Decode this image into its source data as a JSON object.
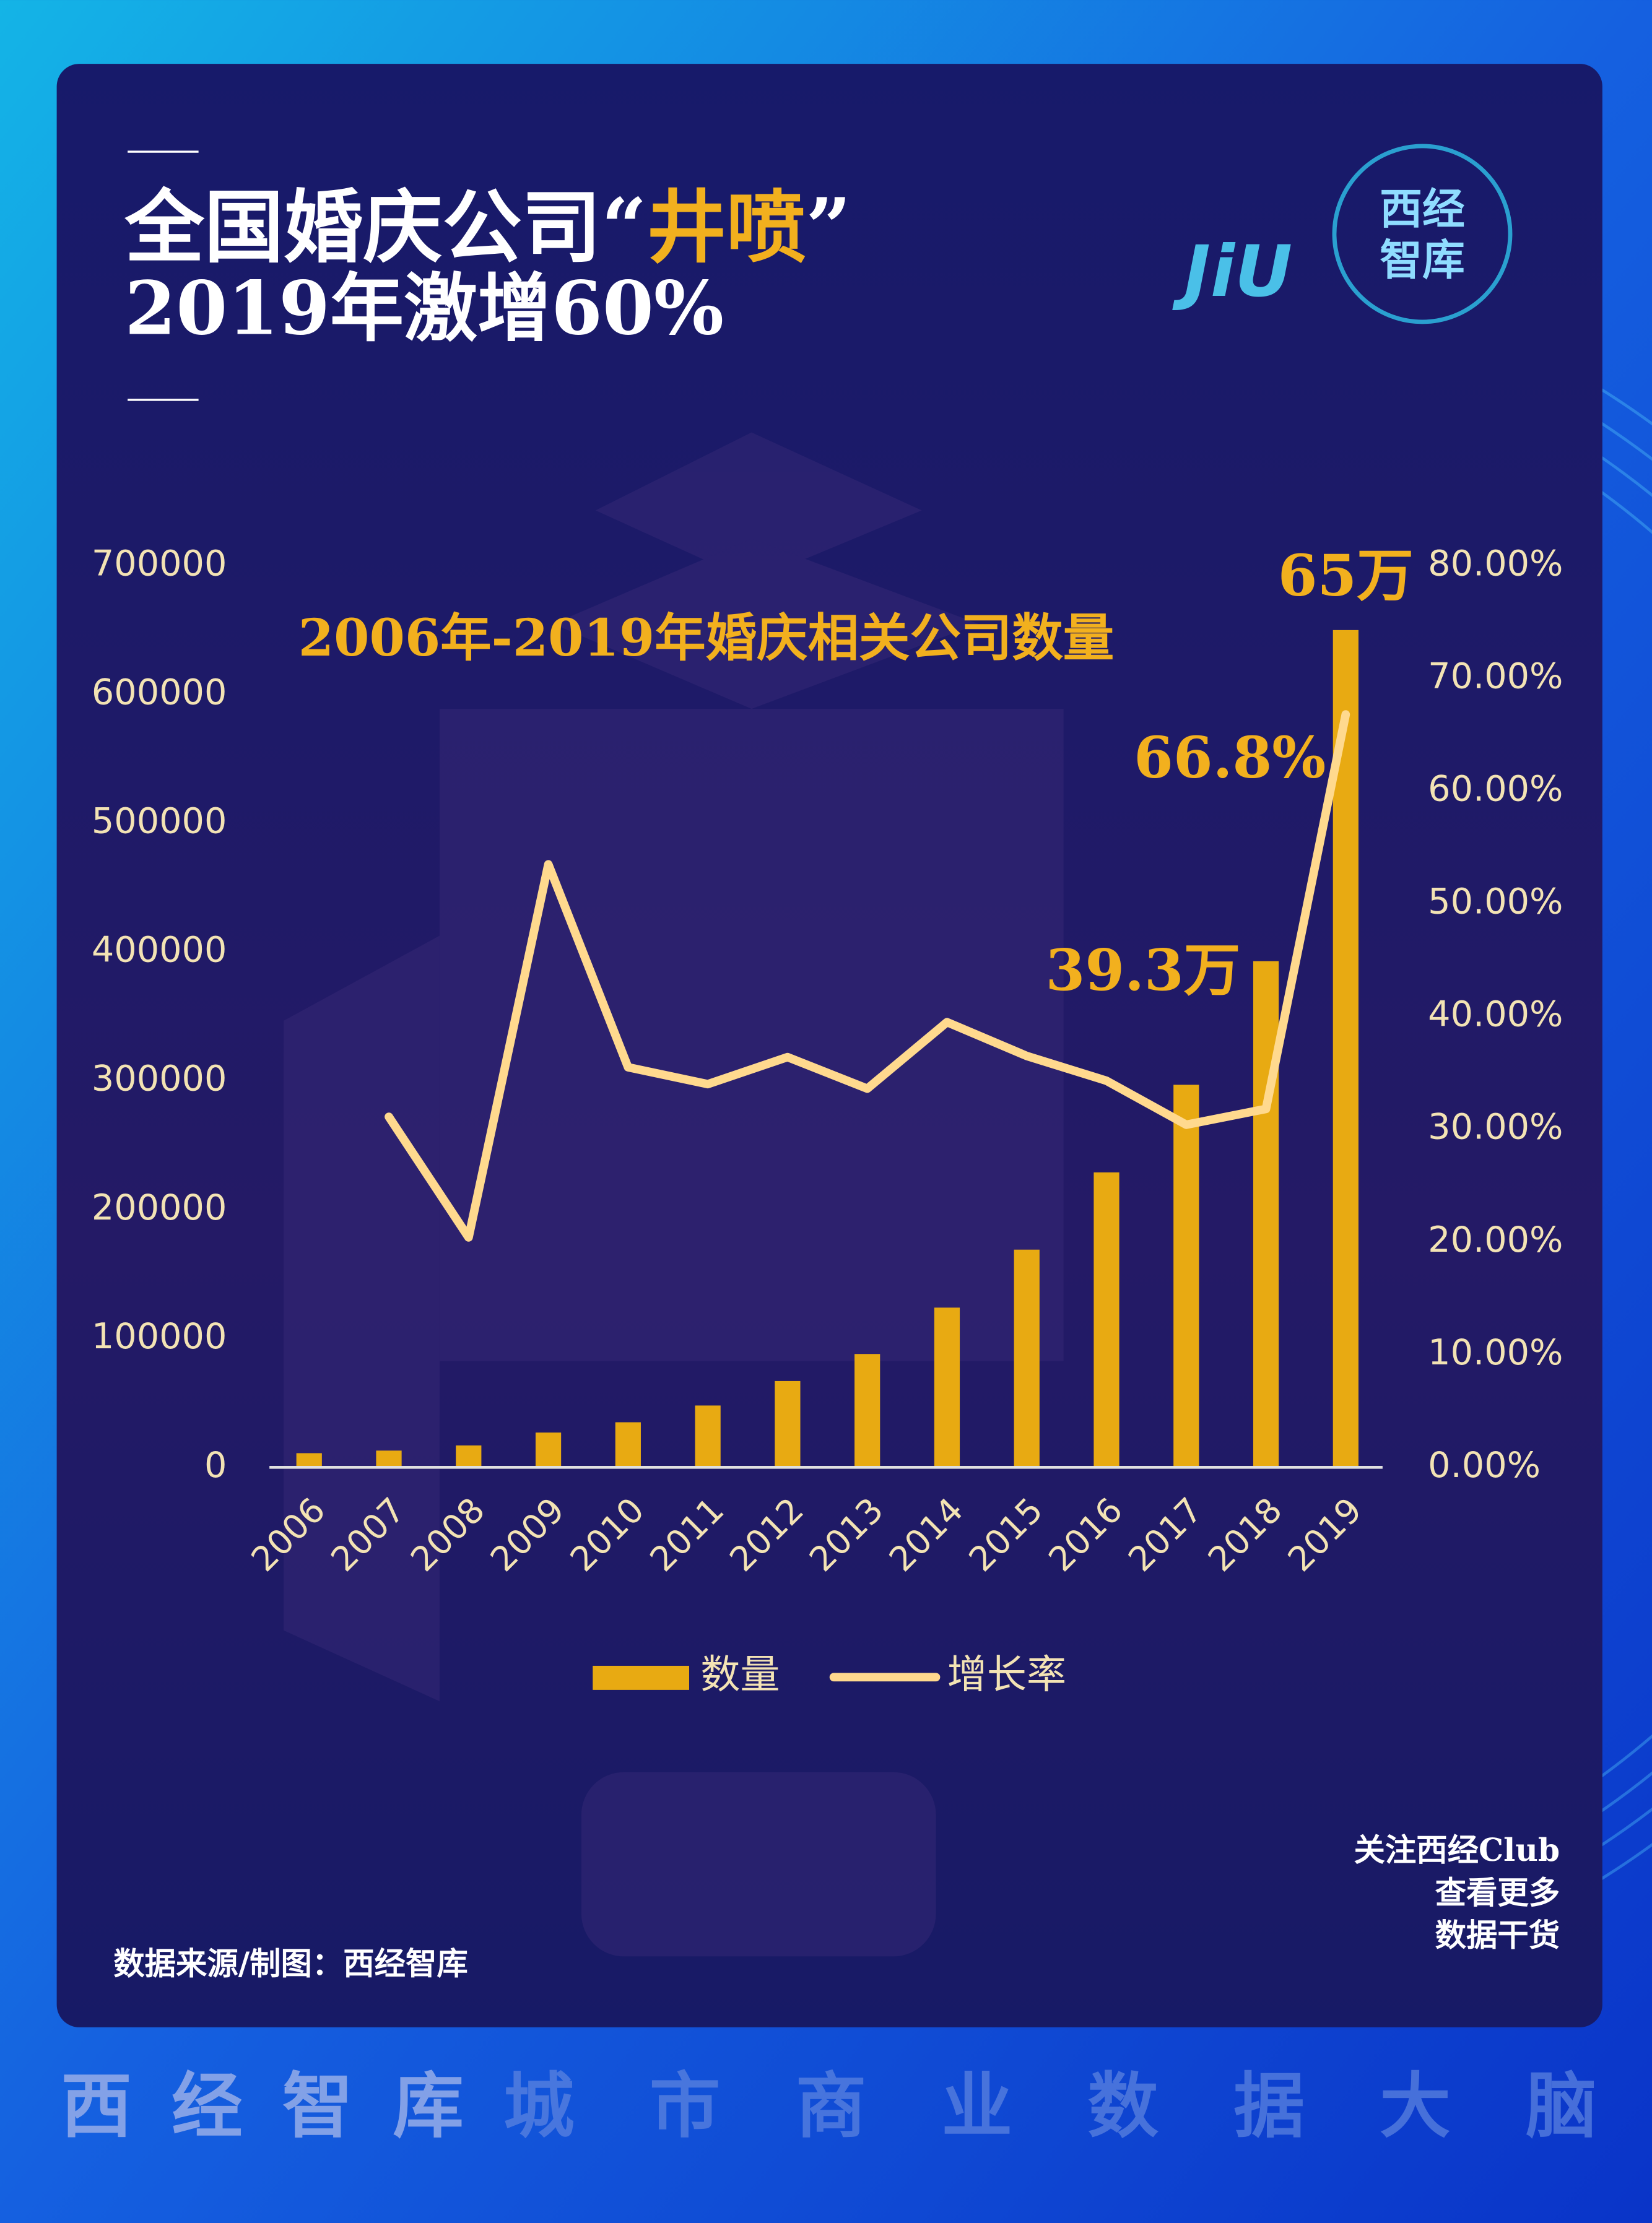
{
  "chart_data": {
    "type": "bar_line",
    "title": [
      "全国婚庆公司“",
      "井喷",
      "”"
    ],
    "subtitle": "2019年激增60%",
    "heading": "2006年-2019年婚庆相关公司数量",
    "categories": [
      "2006",
      "2007",
      "2008",
      "2009",
      "2010",
      "2011",
      "2012",
      "2013",
      "2014",
      "2015",
      "2016",
      "2017",
      "2018",
      "2019"
    ],
    "series": [
      {
        "name": "数量",
        "type": "bar",
        "color": "#e8aa12",
        "values": [
          11000,
          13000,
          17000,
          27000,
          35000,
          48000,
          67000,
          88000,
          124000,
          169000,
          229000,
          297000,
          393000,
          650000
        ],
        "value_labels": [
          null,
          null,
          null,
          null,
          null,
          null,
          null,
          null,
          null,
          null,
          null,
          null,
          "39.3万",
          "65万"
        ]
      },
      {
        "name": "增长率",
        "type": "line",
        "axis": "y2",
        "color": "#ffd98e",
        "values": [
          null,
          31.1,
          20.4,
          53.5,
          35.5,
          34.0,
          36.4,
          33.6,
          39.5,
          36.5,
          34.3,
          30.4,
          31.8,
          66.8
        ],
        "value_labels": [
          null,
          null,
          null,
          null,
          null,
          null,
          null,
          null,
          null,
          null,
          null,
          null,
          null,
          "66.8%"
        ]
      }
    ],
    "ylim": [
      0,
      700000
    ],
    "yticks": [
      0,
      100000,
      200000,
      300000,
      400000,
      500000,
      600000,
      700000
    ],
    "y2lim": [
      0,
      80
    ],
    "y2ticks": [
      {
        "value": 0,
        "label": "0.00%"
      },
      {
        "value": 10,
        "label": "10.00%"
      },
      {
        "value": 20,
        "label": "20.00%"
      },
      {
        "value": 30,
        "label": "30.00%"
      },
      {
        "value": 40,
        "label": "40.00%"
      },
      {
        "value": 50,
        "label": "50.00%"
      },
      {
        "value": 60,
        "label": "60.00%"
      },
      {
        "value": 70,
        "label": "70.00%"
      },
      {
        "value": 80,
        "label": "80.00%"
      }
    ],
    "grid": false,
    "legend": "bottom"
  },
  "page": {
    "logo_left": "JiU",
    "logo_right": [
      "西经",
      "智库"
    ],
    "source": "数据来源/制图：西经智库",
    "follow": [
      "关注西经Club",
      "查看更多",
      "数据干货"
    ],
    "banner": [
      "西",
      "经",
      "智",
      "库",
      "城",
      "市",
      "商",
      "业",
      "数",
      "据",
      "大",
      "脑"
    ]
  }
}
